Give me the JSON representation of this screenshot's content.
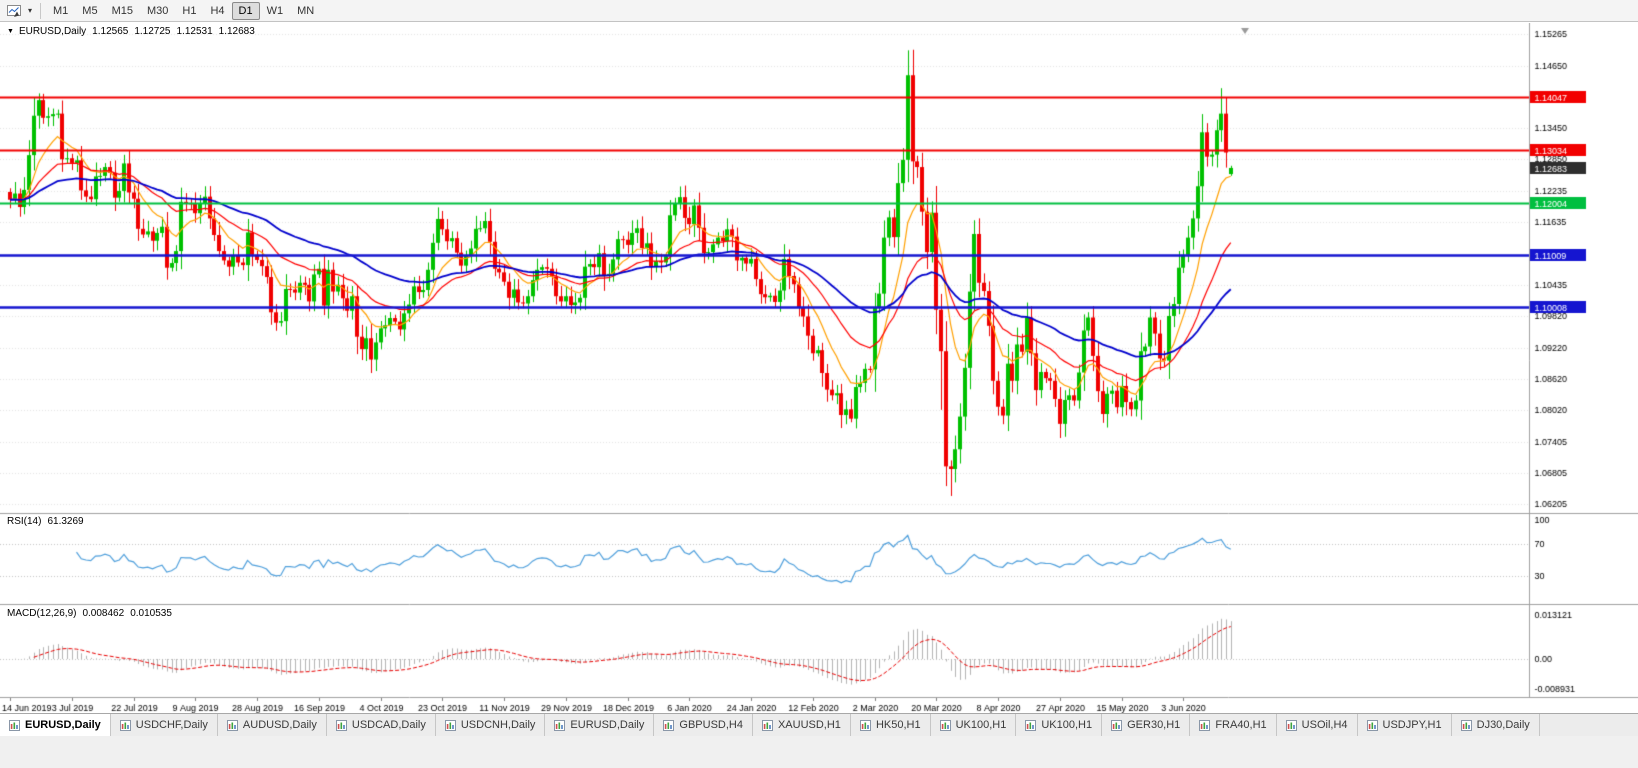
{
  "toolbar": {
    "timeframes": [
      "M1",
      "M5",
      "M15",
      "M30",
      "H1",
      "H4",
      "D1",
      "W1",
      "MN"
    ],
    "active_timeframe": "D1"
  },
  "icons": {
    "chart_menu_arrow": "▼",
    "toolbar_caret": "▾"
  },
  "chart": {
    "title": {
      "symbol": "EURUSD,Daily",
      "open": "1.12565",
      "high": "1.12725",
      "low": "1.12531",
      "close": "1.12683"
    }
  },
  "indicators": {
    "rsi": {
      "name": "RSI(14)",
      "value": "61.3269",
      "period": 14,
      "levels": [
        70,
        30
      ],
      "scale_labels": [
        {
          "text": "100",
          "value": 100
        },
        {
          "text": "70",
          "value": 70
        },
        {
          "text": "30",
          "value": 30
        }
      ],
      "color": "#4e9fdc"
    },
    "macd": {
      "name": "MACD(12,26,9)",
      "value_main": "0.008462",
      "value_signal": "0.010535",
      "fast": 12,
      "slow": 26,
      "signal": 9,
      "scale": {
        "top": {
          "text": "0.013121",
          "value": 0.013121
        },
        "zero": {
          "text": "0.00",
          "value": 0
        },
        "bottom": {
          "text": "-0.008931",
          "value": -0.008931
        }
      },
      "hist_color": "#b4b4b4",
      "signal_color": "#e80000"
    }
  },
  "chart_data": {
    "type": "candlestick",
    "symbol": "EURUSD",
    "timeframe": "Daily",
    "x_labels": [
      "14 Jun 2019",
      "3 Jul 2019",
      "22 Jul 2019",
      "9 Aug 2019",
      "28 Aug 2019",
      "16 Sep 2019",
      "4 Oct 2019",
      "23 Oct 2019",
      "11 Nov 2019",
      "29 Nov 2019",
      "18 Dec 2019",
      "6 Jan 2020",
      "24 Jan 2020",
      "12 Feb 2020",
      "2 Mar 2020",
      "20 Mar 2020",
      "8 Apr 2020",
      "27 Apr 2020",
      "15 May 2020",
      "3 Jun 2020"
    ],
    "label_every_bars": 13,
    "closes": [
      1.1207,
      1.1219,
      1.1193,
      1.1226,
      1.1293,
      1.1369,
      1.1399,
      1.1365,
      1.1368,
      1.1372,
      1.1373,
      1.1285,
      1.1287,
      1.1278,
      1.1283,
      1.1225,
      1.1213,
      1.1208,
      1.1252,
      1.1253,
      1.127,
      1.1259,
      1.1211,
      1.1224,
      1.1277,
      1.1221,
      1.1209,
      1.1151,
      1.114,
      1.1146,
      1.1128,
      1.1143,
      1.1155,
      1.1076,
      1.1085,
      1.1108,
      1.1203,
      1.12,
      1.1199,
      1.1181,
      1.12,
      1.1213,
      1.1171,
      1.1139,
      1.1108,
      1.109,
      1.1078,
      1.11,
      1.1086,
      1.1081,
      1.1144,
      1.1101,
      1.1091,
      1.1079,
      1.1058,
      1.099,
      1.097,
      1.0973,
      1.1035,
      1.1034,
      1.1028,
      1.1047,
      1.1043,
      1.1011,
      1.1063,
      1.1074,
      1.1003,
      1.1072,
      1.103,
      1.1043,
      1.1017,
      1.0993,
      1.1021,
      1.0943,
      1.0919,
      1.094,
      1.0899,
      1.0932,
      1.0959,
      1.0965,
      1.0979,
      1.0972,
      1.0957,
      1.0988,
      1.1005,
      1.104,
      1.1029,
      1.1033,
      1.1072,
      1.1124,
      1.117,
      1.115,
      1.1127,
      1.1133,
      1.1105,
      1.108,
      1.1099,
      1.1113,
      1.1151,
      1.1152,
      1.1166,
      1.1126,
      1.1074,
      1.1067,
      1.1049,
      1.1018,
      1.1034,
      1.1009,
      1.1007,
      1.1021,
      1.1052,
      1.1072,
      1.1077,
      1.1074,
      1.1059,
      1.1021,
      1.1011,
      1.1021,
      1.1004,
      1.1009,
      1.1018,
      1.1078,
      1.1083,
      1.1077,
      1.1104,
      1.106,
      1.1064,
      1.1092,
      1.1131,
      1.113,
      1.112,
      1.1143,
      1.1152,
      1.1114,
      1.1123,
      1.1077,
      1.1089,
      1.1086,
      1.1098,
      1.1177,
      1.1199,
      1.1212,
      1.1172,
      1.116,
      1.1196,
      1.1153,
      1.1104,
      1.1106,
      1.1121,
      1.1134,
      1.1127,
      1.115,
      1.1136,
      1.109,
      1.1095,
      1.1084,
      1.1093,
      1.1054,
      1.1025,
      1.1019,
      1.1022,
      1.101,
      1.1032,
      1.1093,
      1.106,
      1.1044,
      1.0999,
      1.0982,
      1.0945,
      1.0911,
      1.0917,
      1.0873,
      1.0841,
      1.083,
      1.0834,
      1.0792,
      1.0803,
      1.0785,
      1.0846,
      1.0854,
      1.0881,
      1.088,
      1.0999,
      1.1026,
      1.1134,
      1.1173,
      1.1135,
      1.1239,
      1.1284,
      1.1447,
      1.1281,
      1.127,
      1.1184,
      1.1106,
      1.1182,
      1.0995,
      1.0915,
      1.0693,
      1.0688,
      1.0726,
      1.0789,
      1.0883,
      1.103,
      1.1141,
      1.1047,
      1.1031,
      1.0964,
      1.0858,
      1.0808,
      1.0791,
      1.0891,
      1.0858,
      1.0928,
      1.0914,
      1.098,
      1.0911,
      1.084,
      1.0875,
      1.0863,
      1.0858,
      1.0823,
      1.0775,
      1.0821,
      1.083,
      1.082,
      1.0874,
      1.0955,
      1.098,
      1.0906,
      1.0838,
      1.0794,
      1.0833,
      1.0839,
      1.0807,
      1.0848,
      1.0817,
      1.0803,
      1.082,
      1.0915,
      1.0924,
      1.098,
      1.0949,
      1.0901,
      1.0897,
      1.0983,
      1.1006,
      1.1076,
      1.1101,
      1.1134,
      1.1171,
      1.1233,
      1.1337,
      1.129,
      1.1294,
      1.1341,
      1.1373,
      1.1298,
      1.12683
    ],
    "overrides": {
      "6": {
        "h": 1.1412
      },
      "177": {
        "l": 1.0778
      },
      "189": {
        "h": 1.1495
      },
      "196": {
        "l": 1.0802
      },
      "197": {
        "l": 1.0655
      },
      "198": {
        "l": 1.0636
      },
      "255": {
        "h": 1.1422
      },
      "257": {
        "o": 1.12565,
        "h": 1.12725,
        "l": 1.12531
      }
    },
    "price_range": {
      "top": 1.15265,
      "bottom": 1.06205
    },
    "y_ticks": [
      {
        "text": "1.15265",
        "value": 1.15265
      },
      {
        "text": "1.14650",
        "value": 1.1465
      },
      {
        "text": "1.13450",
        "value": 1.1345
      },
      {
        "text": "1.12850",
        "value": 1.1285
      },
      {
        "text": "1.12235",
        "value": 1.12235
      },
      {
        "text": "1.11635",
        "value": 1.11635
      },
      {
        "text": "1.10435",
        "value": 1.10435
      },
      {
        "text": "1.09820",
        "value": 1.0982
      },
      {
        "text": "1.09220",
        "value": 1.0922
      },
      {
        "text": "1.08620",
        "value": 1.0862
      },
      {
        "text": "1.08020",
        "value": 1.0802
      },
      {
        "text": "1.07405",
        "value": 1.07405
      },
      {
        "text": "1.06805",
        "value": 1.06805
      },
      {
        "text": "1.06205",
        "value": 1.06205
      }
    ],
    "hlines": [
      {
        "text": "1.14047",
        "value": 1.14047,
        "color": "#f20000",
        "width": 2
      },
      {
        "text": "1.13034",
        "value": 1.13034,
        "color": "#f20000",
        "width": 2
      },
      {
        "text": "1.12004",
        "value": 1.12004,
        "color": "#00bf40",
        "width": 2
      },
      {
        "text": "1.11009",
        "value": 1.11009,
        "color": "#1515d0",
        "width": 2.5
      },
      {
        "text": "1.10008",
        "value": 1.10008,
        "color": "#1515d0",
        "width": 2.5
      }
    ],
    "current_price": {
      "text": "1.12683",
      "value": 1.12683,
      "badge_color": "#2e2e2e"
    },
    "moving_averages": [
      {
        "period": 10,
        "type": "ema",
        "color": "#ffa000",
        "width": 1.2
      },
      {
        "period": 25,
        "type": "ema",
        "color": "#ff0000",
        "width": 1.2
      },
      {
        "period": 55,
        "type": "ema",
        "color": "#0000cd",
        "width": 1.8
      }
    ],
    "candle_up_color": "#00c000",
    "candle_down_color": "#f00000"
  },
  "tabs": {
    "active_index": 0,
    "items": [
      {
        "label": "EURUSD,Daily"
      },
      {
        "label": "USDCHF,Daily"
      },
      {
        "label": "AUDUSD,Daily"
      },
      {
        "label": "USDCAD,Daily"
      },
      {
        "label": "USDCNH,Daily"
      },
      {
        "label": "EURUSD,Daily"
      },
      {
        "label": "GBPUSD,H4"
      },
      {
        "label": "XAUUSD,H1"
      },
      {
        "label": "HK50,H1"
      },
      {
        "label": "UK100,H1"
      },
      {
        "label": "UK100,H1"
      },
      {
        "label": "GER30,H1"
      },
      {
        "label": "FRA40,H1"
      },
      {
        "label": "USOil,H4"
      },
      {
        "label": "USDJPY,H1"
      },
      {
        "label": "DJ30,Daily"
      }
    ]
  }
}
